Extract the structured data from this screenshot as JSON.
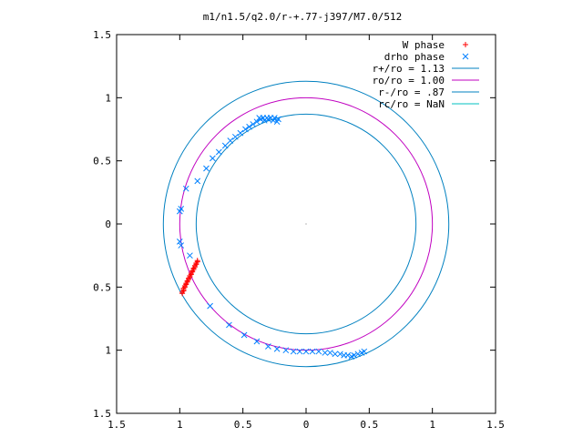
{
  "chart_data": {
    "type": "scatter",
    "title": "m1/n1.5/q2.0/r-+.77-j397/M7.0/512",
    "xlabel": "",
    "ylabel": "",
    "xlim": [
      -1.5,
      1.5
    ],
    "ylim": [
      -1.5,
      1.5
    ],
    "x_ticks": [
      -1.5,
      -1,
      -0.5,
      0,
      0.5,
      1,
      1.5
    ],
    "y_ticks": [
      -1.5,
      -1,
      -0.5,
      0,
      0.5,
      1,
      1.5
    ],
    "x_tick_labels": [
      "1.5",
      "1",
      "0.5",
      "0",
      "0.5",
      "1",
      "1.5"
    ],
    "y_tick_labels": [
      "1.5",
      "1",
      "0.5",
      "0",
      "0.5",
      "1",
      "1.5"
    ],
    "grid": false,
    "legend_position": "top-right",
    "series": [
      {
        "name": "W phase",
        "marker": "plus",
        "color": "#ff0000",
        "points": [
          [
            -0.98,
            -0.55
          ],
          [
            -0.98,
            -0.54
          ],
          [
            -0.97,
            -0.53
          ],
          [
            -0.97,
            -0.52
          ],
          [
            -0.97,
            -0.51
          ],
          [
            -0.96,
            -0.5
          ],
          [
            -0.96,
            -0.49
          ],
          [
            -0.95,
            -0.48
          ],
          [
            -0.95,
            -0.47
          ],
          [
            -0.94,
            -0.46
          ],
          [
            -0.94,
            -0.45
          ],
          [
            -0.93,
            -0.44
          ],
          [
            -0.93,
            -0.43
          ],
          [
            -0.92,
            -0.42
          ],
          [
            -0.92,
            -0.41
          ],
          [
            -0.91,
            -0.4
          ],
          [
            -0.91,
            -0.39
          ],
          [
            -0.9,
            -0.38
          ],
          [
            -0.9,
            -0.37
          ],
          [
            -0.89,
            -0.36
          ],
          [
            -0.89,
            -0.35
          ],
          [
            -0.88,
            -0.34
          ],
          [
            -0.88,
            -0.33
          ],
          [
            -0.87,
            -0.32
          ],
          [
            -0.87,
            -0.31
          ],
          [
            -0.86,
            -0.3
          ],
          [
            -0.86,
            -0.29
          ]
        ]
      },
      {
        "name": "drho phase",
        "marker": "cross",
        "color": "#0080ff",
        "points": [
          [
            -0.37,
            0.84
          ],
          [
            -0.34,
            0.84
          ],
          [
            -0.31,
            0.84
          ],
          [
            -0.28,
            0.84
          ],
          [
            -0.25,
            0.84
          ],
          [
            -0.22,
            0.83
          ],
          [
            -0.36,
            0.83
          ],
          [
            -0.33,
            0.82
          ],
          [
            -0.3,
            0.83
          ],
          [
            -0.26,
            0.82
          ],
          [
            -0.23,
            0.81
          ],
          [
            -0.39,
            0.81
          ],
          [
            -0.42,
            0.79
          ],
          [
            -0.45,
            0.77
          ],
          [
            -0.48,
            0.75
          ],
          [
            -0.52,
            0.72
          ],
          [
            -0.56,
            0.69
          ],
          [
            -0.6,
            0.66
          ],
          [
            -0.64,
            0.62
          ],
          [
            -0.69,
            0.57
          ],
          [
            -0.74,
            0.52
          ],
          [
            -0.79,
            0.44
          ],
          [
            -0.86,
            0.34
          ],
          [
            -0.95,
            0.28
          ],
          [
            -0.99,
            0.12
          ],
          [
            -1.0,
            0.1
          ],
          [
            -1.0,
            -0.14
          ],
          [
            -0.99,
            -0.17
          ],
          [
            -0.92,
            -0.25
          ],
          [
            -0.76,
            -0.65
          ],
          [
            -0.61,
            -0.8
          ],
          [
            -0.49,
            -0.88
          ],
          [
            -0.39,
            -0.93
          ],
          [
            -0.3,
            -0.97
          ],
          [
            -0.23,
            -0.99
          ],
          [
            -0.16,
            -1.0
          ],
          [
            -0.1,
            -1.01
          ],
          [
            -0.05,
            -1.01
          ],
          [
            0.0,
            -1.01
          ],
          [
            0.05,
            -1.01
          ],
          [
            0.1,
            -1.01
          ],
          [
            0.15,
            -1.02
          ],
          [
            0.19,
            -1.02
          ],
          [
            0.23,
            -1.03
          ],
          [
            0.27,
            -1.03
          ],
          [
            0.3,
            -1.04
          ],
          [
            0.33,
            -1.04
          ],
          [
            0.36,
            -1.05
          ],
          [
            0.38,
            -1.04
          ],
          [
            0.41,
            -1.03
          ],
          [
            0.44,
            -1.02
          ],
          [
            0.46,
            -1.01
          ]
        ]
      },
      {
        "name": "r+/ro = 1.13",
        "type": "circle",
        "radius": 1.13,
        "color": "#0080c0"
      },
      {
        "name": "ro/ro = 1.00",
        "type": "circle",
        "radius": 1.0,
        "color": "#c000c0"
      },
      {
        "name": "r-/ro = .87",
        "type": "circle",
        "radius": 0.87,
        "color": "#0080c0"
      },
      {
        "name": "rc/ro = NaN",
        "type": "circle",
        "radius": null,
        "color": "#00c0c0"
      }
    ]
  }
}
